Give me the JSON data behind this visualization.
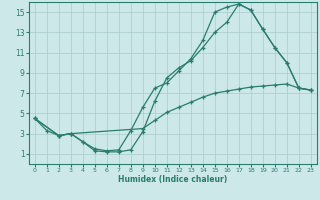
{
  "xlabel": "Humidex (Indice chaleur)",
  "bg_color": "#cce8e8",
  "line_color": "#2a7d6e",
  "grid_color": "#aacccc",
  "xlim": [
    -0.5,
    23.5
  ],
  "ylim": [
    0,
    16
  ],
  "xticks": [
    0,
    1,
    2,
    3,
    4,
    5,
    6,
    7,
    8,
    9,
    10,
    11,
    12,
    13,
    14,
    15,
    16,
    17,
    18,
    19,
    20,
    21,
    22,
    23
  ],
  "yticks": [
    1,
    3,
    5,
    7,
    9,
    11,
    13,
    15
  ],
  "series": [
    {
      "x": [
        0,
        1,
        2,
        3,
        4,
        5,
        6,
        7,
        8,
        9,
        10,
        11,
        12,
        13,
        14,
        15,
        16,
        17,
        18,
        19,
        20,
        21,
        22,
        23
      ],
      "y": [
        4.5,
        3.3,
        2.8,
        3.0,
        2.2,
        1.5,
        1.3,
        1.4,
        3.3,
        5.6,
        7.5,
        8.0,
        9.2,
        10.4,
        12.2,
        15.0,
        15.5,
        15.8,
        15.2,
        13.3,
        11.5,
        10.0,
        7.5,
        7.3
      ]
    },
    {
      "x": [
        0,
        2,
        3,
        4,
        5,
        6,
        7,
        8,
        9,
        10,
        11,
        12,
        13,
        14,
        15,
        16,
        17,
        18,
        19,
        20,
        21,
        22,
        23
      ],
      "y": [
        4.5,
        2.8,
        3.0,
        2.2,
        1.3,
        1.2,
        1.2,
        1.4,
        3.2,
        6.2,
        8.5,
        9.5,
        10.2,
        11.5,
        13.0,
        14.0,
        15.8,
        15.2,
        13.3,
        11.5,
        10.0,
        7.5,
        7.3
      ]
    },
    {
      "x": [
        0,
        2,
        3,
        9,
        10,
        11,
        12,
        13,
        14,
        15,
        16,
        17,
        18,
        19,
        20,
        21,
        22,
        23
      ],
      "y": [
        4.5,
        2.8,
        3.0,
        3.5,
        4.3,
        5.1,
        5.6,
        6.1,
        6.6,
        7.0,
        7.2,
        7.4,
        7.6,
        7.7,
        7.8,
        7.9,
        7.5,
        7.3
      ]
    }
  ]
}
